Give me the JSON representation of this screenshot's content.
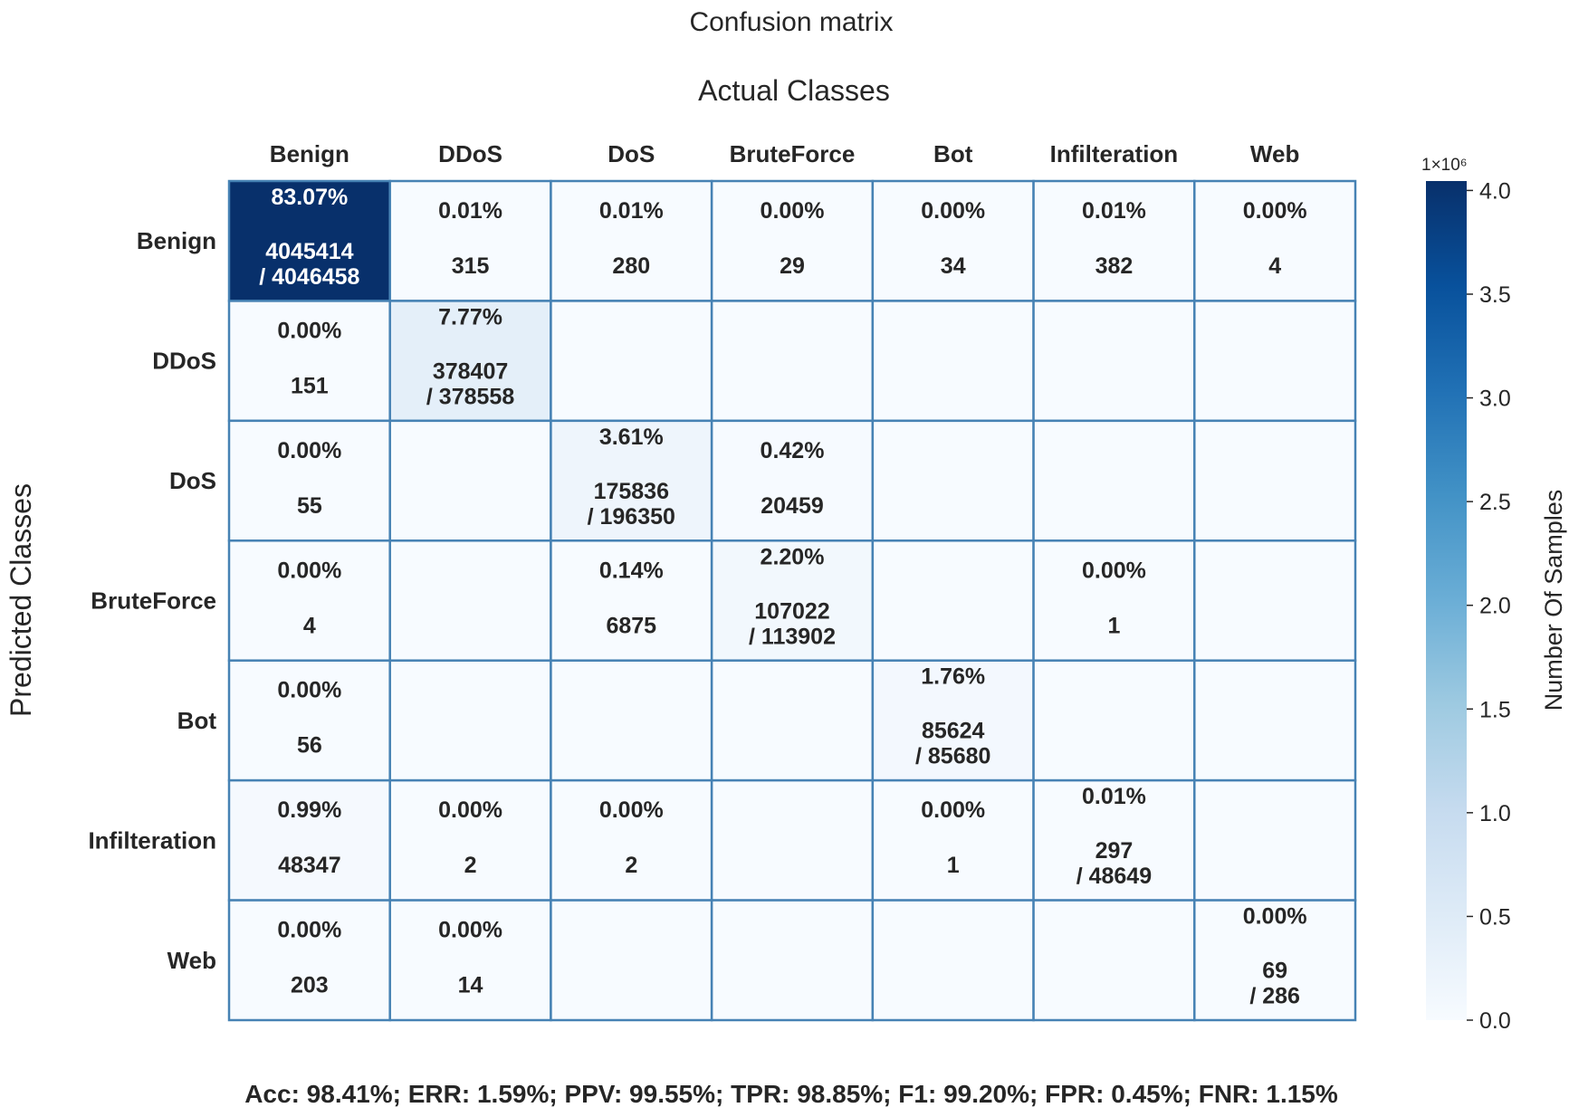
{
  "chart_data": {
    "type": "heatmap",
    "title": "Confusion matrix",
    "xlabel": "Actual Classes",
    "ylabel": "Predicted Classes",
    "x_categories": [
      "Benign",
      "DDoS",
      "DoS",
      "BruteForce",
      "Bot",
      "Infilteration",
      "Web"
    ],
    "y_categories": [
      "Benign",
      "DDoS",
      "DoS",
      "BruteForce",
      "Bot",
      "Infilteration",
      "Web"
    ],
    "counts": [
      [
        4045414,
        315,
        280,
        29,
        34,
        382,
        4
      ],
      [
        151,
        378407,
        null,
        null,
        null,
        null,
        null
      ],
      [
        55,
        null,
        175836,
        20459,
        null,
        null,
        null
      ],
      [
        4,
        null,
        6875,
        107022,
        null,
        1,
        null
      ],
      [
        56,
        null,
        null,
        null,
        85624,
        null,
        null
      ],
      [
        48347,
        2,
        2,
        null,
        1,
        297,
        null
      ],
      [
        203,
        14,
        null,
        null,
        null,
        null,
        69
      ]
    ],
    "percents": [
      [
        "83.07%",
        "0.01%",
        "0.01%",
        "0.00%",
        "0.00%",
        "0.01%",
        "0.00%"
      ],
      [
        "0.00%",
        "7.77%",
        null,
        null,
        null,
        null,
        null
      ],
      [
        "0.00%",
        null,
        "3.61%",
        "0.42%",
        null,
        null,
        null
      ],
      [
        "0.00%",
        null,
        "0.14%",
        "2.20%",
        null,
        "0.00%",
        null
      ],
      [
        "0.00%",
        null,
        null,
        null,
        "1.76%",
        null,
        null
      ],
      [
        "0.99%",
        "0.00%",
        "0.00%",
        null,
        "0.00%",
        "0.01%",
        null
      ],
      [
        "0.00%",
        "0.00%",
        null,
        null,
        null,
        null,
        "0.00%"
      ]
    ],
    "diagonal_totals": [
      "/ 4046458",
      "/ 378558",
      "/ 196350",
      "/ 113902",
      "/ 85680",
      "/ 48649",
      "/ 286"
    ],
    "colormap": "Blues",
    "colorbar": {
      "label": "Number Of Samples",
      "multiplier": "1×10⁶",
      "range": [
        0,
        4045414
      ],
      "ticks": [
        0,
        0.5,
        1.0,
        1.5,
        2.0,
        2.5,
        3.0,
        3.5,
        4.0
      ],
      "tick_labels": [
        "0.0",
        "0.5",
        "1.0",
        "1.5",
        "2.0",
        "2.5",
        "3.0",
        "3.5",
        "4.0"
      ]
    },
    "grid_color": "#4682b4",
    "footer": "Acc: 98.41%; ERR: 1.59%; PPV: 99.55%; TPR: 98.85%; F1: 99.20%; FPR: 0.45%; FNR: 1.15%"
  }
}
